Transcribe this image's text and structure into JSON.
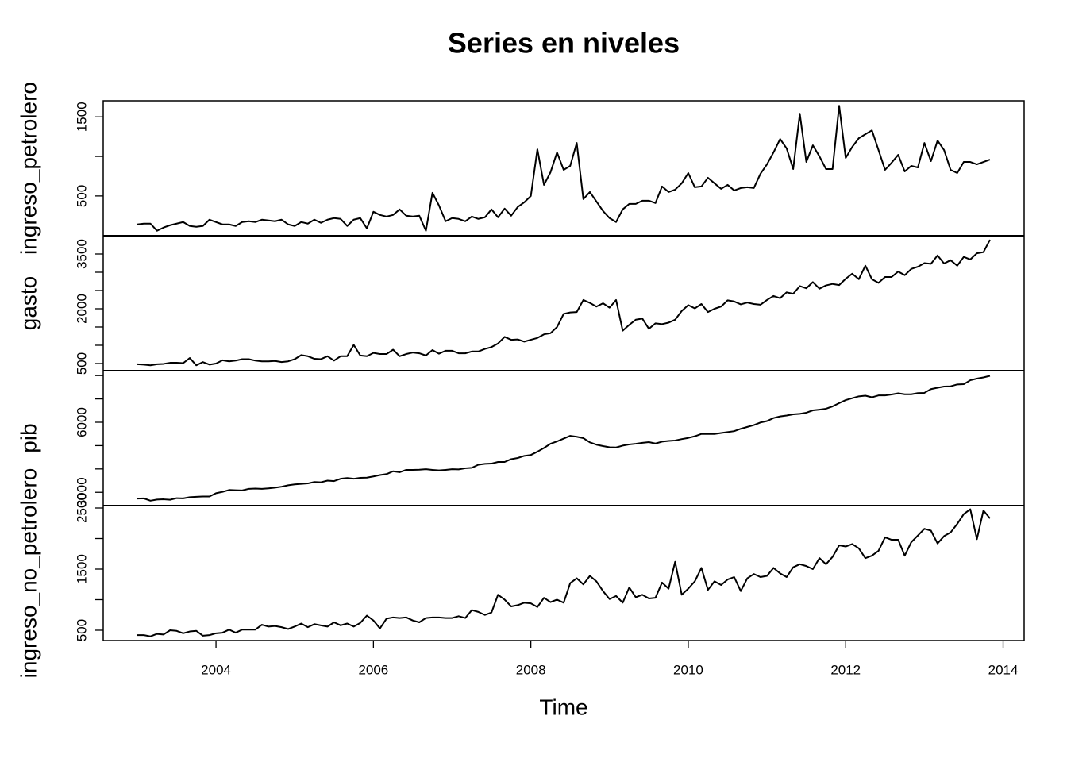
{
  "chart_data": [
    {
      "type": "line",
      "title": "Series en niveles",
      "ylabel": "ingreso_petrolero",
      "color": "#000000",
      "ylim": [
        -3,
        1703
      ],
      "yticks": [
        500,
        1500
      ],
      "yminor_ticks": [
        1000
      ],
      "values": [
        140,
        150,
        150,
        60,
        100,
        130,
        150,
        170,
        120,
        110,
        120,
        200,
        170,
        140,
        140,
        120,
        170,
        180,
        170,
        200,
        190,
        180,
        200,
        140,
        120,
        170,
        150,
        200,
        160,
        200,
        220,
        210,
        120,
        200,
        220,
        90,
        300,
        260,
        240,
        260,
        330,
        250,
        240,
        250,
        60,
        540,
        380,
        180,
        220,
        210,
        180,
        240,
        210,
        230,
        330,
        230,
        340,
        250,
        360,
        420,
        500,
        1090,
        640,
        800,
        1050,
        830,
        880,
        1170,
        460,
        550,
        430,
        310,
        220,
        170,
        330,
        400,
        400,
        440,
        440,
        410,
        620,
        550,
        580,
        660,
        790,
        610,
        620,
        730,
        660,
        590,
        640,
        570,
        600,
        610,
        600,
        780,
        900,
        1050,
        1220,
        1100,
        840,
        1540,
        930,
        1140,
        1000,
        840,
        840,
        1640,
        980,
        1120,
        1230,
        1280,
        1330,
        1080,
        830,
        920,
        1020,
        810,
        880,
        860,
        1170,
        940,
        1200,
        1080,
        830,
        790,
        930,
        930,
        900,
        930,
        960
      ]
    },
    {
      "type": "line",
      "ylabel": "gasto",
      "color": "#000000",
      "ylim": [
        304,
        4000
      ],
      "yticks": [
        500,
        2000,
        3500
      ],
      "yminor_ticks": [
        1000,
        1500,
        2500,
        3000
      ],
      "values": [
        480,
        470,
        450,
        480,
        490,
        520,
        520,
        510,
        650,
        450,
        540,
        470,
        500,
        590,
        560,
        580,
        620,
        620,
        580,
        560,
        560,
        570,
        540,
        560,
        620,
        730,
        700,
        630,
        620,
        700,
        580,
        700,
        700,
        1010,
        720,
        700,
        790,
        760,
        760,
        880,
        700,
        760,
        800,
        780,
        720,
        870,
        770,
        850,
        850,
        780,
        780,
        830,
        830,
        900,
        950,
        1050,
        1230,
        1150,
        1160,
        1100,
        1150,
        1200,
        1300,
        1330,
        1500,
        1860,
        1900,
        1910,
        2240,
        2160,
        2060,
        2150,
        2030,
        2240,
        1400,
        1560,
        1700,
        1730,
        1450,
        1600,
        1580,
        1620,
        1700,
        1940,
        2100,
        2010,
        2130,
        1910,
        2000,
        2060,
        2230,
        2200,
        2120,
        2170,
        2130,
        2110,
        2240,
        2350,
        2290,
        2450,
        2410,
        2620,
        2560,
        2730,
        2550,
        2640,
        2680,
        2650,
        2820,
        2960,
        2810,
        3180,
        2810,
        2710,
        2870,
        2870,
        3020,
        2920,
        3090,
        3150,
        3250,
        3230,
        3460,
        3240,
        3330,
        3180,
        3420,
        3350,
        3520,
        3550,
        3890
      ]
    },
    {
      "type": "line",
      "ylabel": "pib",
      "color": "#000000",
      "ylim": [
        2430,
        8210
      ],
      "yticks": [
        3000,
        6000
      ],
      "yminor_ticks": [
        4000,
        5000,
        7000,
        8000
      ],
      "values": [
        2730,
        2740,
        2640,
        2690,
        2700,
        2680,
        2750,
        2740,
        2790,
        2810,
        2820,
        2820,
        2960,
        3020,
        3100,
        3090,
        3080,
        3150,
        3160,
        3150,
        3170,
        3200,
        3240,
        3300,
        3340,
        3360,
        3380,
        3440,
        3430,
        3500,
        3480,
        3580,
        3610,
        3580,
        3620,
        3630,
        3680,
        3740,
        3780,
        3900,
        3860,
        3960,
        3960,
        3970,
        3990,
        3960,
        3940,
        3960,
        3990,
        3980,
        4030,
        4050,
        4180,
        4220,
        4230,
        4300,
        4300,
        4420,
        4470,
        4560,
        4600,
        4740,
        4900,
        5080,
        5180,
        5300,
        5420,
        5380,
        5320,
        5140,
        5040,
        4980,
        4930,
        4920,
        5000,
        5050,
        5080,
        5120,
        5150,
        5090,
        5170,
        5200,
        5220,
        5280,
        5330,
        5400,
        5500,
        5500,
        5500,
        5540,
        5580,
        5620,
        5720,
        5800,
        5880,
        5990,
        6050,
        6180,
        6250,
        6290,
        6340,
        6360,
        6410,
        6510,
        6540,
        6580,
        6680,
        6820,
        6950,
        7030,
        7110,
        7140,
        7070,
        7150,
        7150,
        7190,
        7240,
        7200,
        7200,
        7250,
        7260,
        7420,
        7480,
        7530,
        7540,
        7620,
        7630,
        7800,
        7870,
        7920,
        7990
      ]
    },
    {
      "type": "line",
      "ylabel": "ingreso_no_petrolero",
      "color": "#000000",
      "xlabel": "Time",
      "ylim": [
        331,
        2539
      ],
      "yticks": [
        500,
        1500,
        2500
      ],
      "yminor_ticks": [
        1000,
        2000
      ],
      "xlim": [
        2002.567,
        2014.267
      ],
      "xticks": [
        2004,
        2006,
        2008,
        2010,
        2012,
        2014
      ],
      "values": [
        420,
        420,
        400,
        440,
        430,
        500,
        490,
        450,
        480,
        490,
        410,
        420,
        450,
        460,
        510,
        460,
        510,
        510,
        510,
        590,
        560,
        570,
        550,
        520,
        560,
        610,
        550,
        600,
        580,
        560,
        630,
        580,
        610,
        560,
        620,
        740,
        660,
        530,
        690,
        710,
        700,
        710,
        660,
        630,
        700,
        710,
        710,
        700,
        700,
        730,
        700,
        830,
        800,
        750,
        790,
        1080,
        1000,
        890,
        910,
        950,
        940,
        880,
        1030,
        960,
        1000,
        950,
        1270,
        1350,
        1250,
        1390,
        1300,
        1140,
        1010,
        1060,
        950,
        1200,
        1040,
        1080,
        1020,
        1030,
        1280,
        1180,
        1620,
        1080,
        1180,
        1300,
        1520,
        1160,
        1300,
        1240,
        1330,
        1370,
        1140,
        1350,
        1420,
        1370,
        1390,
        1520,
        1430,
        1370,
        1530,
        1580,
        1550,
        1500,
        1680,
        1580,
        1700,
        1890,
        1870,
        1910,
        1840,
        1680,
        1720,
        1800,
        2020,
        1980,
        1980,
        1720,
        1940,
        2050,
        2160,
        2130,
        1920,
        2040,
        2100,
        2240,
        2400,
        2480,
        1990,
        2460,
        2330
      ],
      "x": [
        2003,
        2003.083,
        2003.167,
        2003.25,
        2003.333,
        2003.417,
        2003.5,
        2003.583,
        2003.667,
        2003.75,
        2003.833,
        2003.917,
        2004,
        2004.083,
        2004.167,
        2004.25,
        2004.333,
        2004.417,
        2004.5,
        2004.583,
        2004.667,
        2004.75,
        2004.833,
        2004.917,
        2005,
        2005.083,
        2005.167,
        2005.25,
        2005.333,
        2005.417,
        2005.5,
        2005.583,
        2005.667,
        2005.75,
        2005.833,
        2005.917,
        2006,
        2006.083,
        2006.167,
        2006.25,
        2006.333,
        2006.417,
        2006.5,
        2006.583,
        2006.667,
        2006.75,
        2006.833,
        2006.917,
        2007,
        2007.083,
        2007.167,
        2007.25,
        2007.333,
        2007.417,
        2007.5,
        2007.583,
        2007.667,
        2007.75,
        2007.833,
        2007.917,
        2008,
        2008.083,
        2008.167,
        2008.25,
        2008.333,
        2008.417,
        2008.5,
        2008.583,
        2008.667,
        2008.75,
        2008.833,
        2008.917,
        2009,
        2009.083,
        2009.167,
        2009.25,
        2009.333,
        2009.417,
        2009.5,
        2009.583,
        2009.667,
        2009.75,
        2009.833,
        2009.917,
        2010,
        2010.083,
        2010.167,
        2010.25,
        2010.333,
        2010.417,
        2010.5,
        2010.583,
        2010.667,
        2010.75,
        2010.833,
        2010.917,
        2011,
        2011.083,
        2011.167,
        2011.25,
        2011.333,
        2011.417,
        2011.5,
        2011.583,
        2011.667,
        2011.75,
        2011.833,
        2011.917,
        2012,
        2012.083,
        2012.167,
        2012.25,
        2012.333,
        2012.417,
        2012.5,
        2012.583,
        2012.667,
        2012.75,
        2012.833,
        2012.917,
        2013,
        2013.083,
        2013.167,
        2013.25,
        2013.333,
        2013.417,
        2013.5,
        2013.583,
        2013.667,
        2013.75,
        2013.833
      ]
    }
  ]
}
